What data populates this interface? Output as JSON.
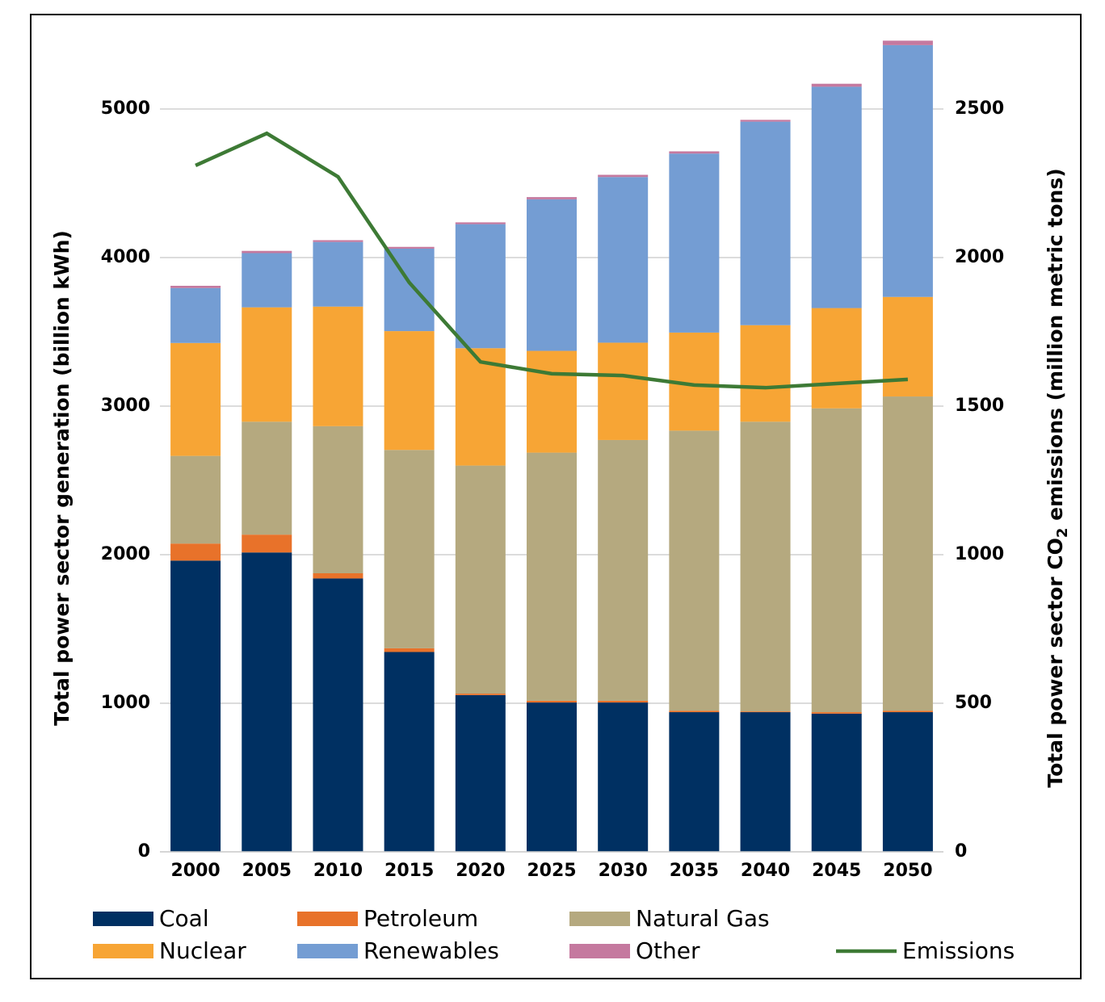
{
  "chart_data": {
    "type": "bar",
    "stacked": true,
    "categories": [
      "2000",
      "2005",
      "2010",
      "2015",
      "2020",
      "2025",
      "2030",
      "2035",
      "2040",
      "2045",
      "2050"
    ],
    "ylabel": "Total power sector generation (billion kWh)",
    "y2label": [
      "Total power sector CO",
      "2",
      " emissions (million metric tons)"
    ],
    "ylim": [
      0,
      5500
    ],
    "yticks": [
      0,
      1000,
      2000,
      3000,
      4000,
      5000
    ],
    "y2lim": [
      0,
      2750
    ],
    "y2ticks": [
      0,
      500,
      1000,
      1500,
      2000,
      2500
    ],
    "grid": true,
    "series": [
      {
        "name": "Coal",
        "color": "#003062",
        "values": [
          1960,
          2015,
          1840,
          1345,
          1055,
          1005,
          1005,
          940,
          940,
          930,
          940
        ]
      },
      {
        "name": "Petroleum",
        "color": "#e8722a",
        "values": [
          115,
          120,
          35,
          25,
          10,
          12,
          12,
          10,
          5,
          10,
          10
        ]
      },
      {
        "name": "Natural Gas",
        "color": "#b5a97f",
        "values": [
          590,
          760,
          990,
          1335,
          1535,
          1670,
          1755,
          1885,
          1950,
          2045,
          2115
        ]
      },
      {
        "name": "Nuclear",
        "color": "#f7a535",
        "values": [
          760,
          770,
          805,
          800,
          790,
          685,
          655,
          660,
          650,
          675,
          670
        ]
      },
      {
        "name": "Renewables",
        "color": "#749dd3",
        "values": [
          370,
          365,
          435,
          555,
          835,
          1020,
          1115,
          1205,
          1370,
          1490,
          1695
        ]
      },
      {
        "name": "Other",
        "color": "#c5799f",
        "values": [
          15,
          15,
          12,
          12,
          12,
          15,
          15,
          15,
          12,
          20,
          30
        ]
      },
      {
        "name": "Emissions",
        "type": "line",
        "axis": "y2",
        "color": "#3d7a35",
        "values": [
          2310,
          2418,
          2272,
          1916,
          1649,
          1609,
          1603,
          1571,
          1562,
          1576,
          1590
        ]
      }
    ]
  }
}
